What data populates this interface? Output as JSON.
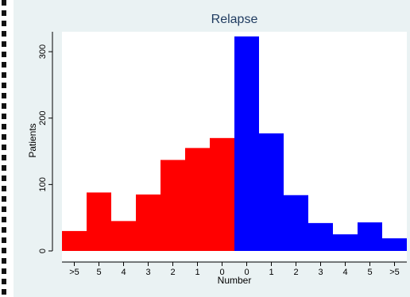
{
  "chart_data": {
    "type": "bar",
    "title": "Relapse",
    "xlabel": "Number",
    "ylabel": "Patients",
    "ylim": [
      0,
      330
    ],
    "yticks": [
      0,
      100,
      200,
      300
    ],
    "grid": false,
    "legend": "none",
    "categories": [
      ">5",
      "5",
      "4",
      "3",
      "2",
      "1",
      "0",
      "0",
      "1",
      "2",
      "3",
      "4",
      "5",
      ">5"
    ],
    "series": [
      {
        "color": "#ff0000",
        "values": [
          30,
          88,
          45,
          85,
          137,
          155,
          170,
          null,
          null,
          null,
          null,
          null,
          null,
          null
        ]
      },
      {
        "color": "#0000ff",
        "values": [
          null,
          null,
          null,
          null,
          null,
          null,
          null,
          323,
          177,
          84,
          42,
          25,
          43,
          19
        ]
      }
    ]
  }
}
